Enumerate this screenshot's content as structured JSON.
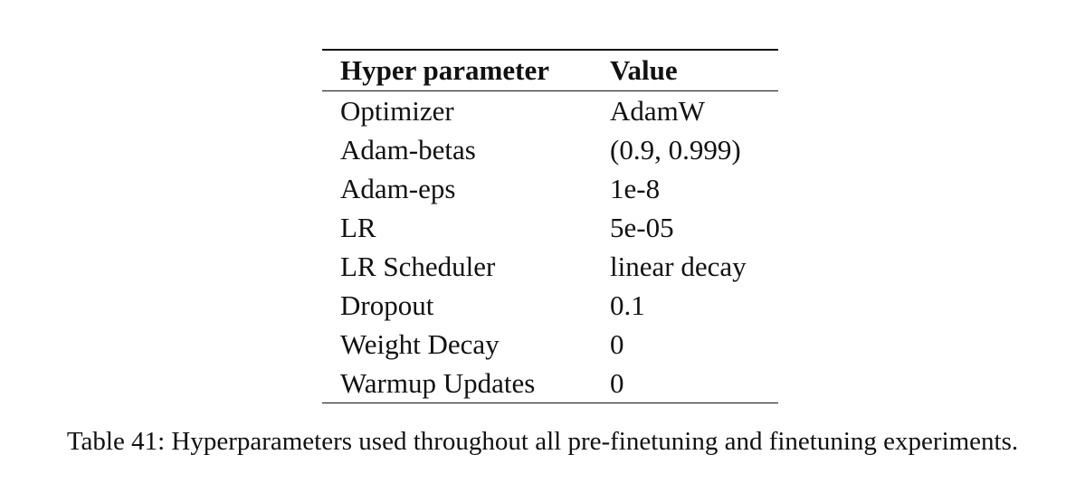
{
  "table": {
    "headers": {
      "name": "Hyper parameter",
      "value": "Value"
    },
    "rows": [
      {
        "name": "Optimizer",
        "value": "AdamW"
      },
      {
        "name": "Adam-betas",
        "value": "(0.9, 0.999)"
      },
      {
        "name": "Adam-eps",
        "value": "1e-8"
      },
      {
        "name": "LR",
        "value": "5e-05"
      },
      {
        "name": "LR Scheduler",
        "value": "linear decay"
      },
      {
        "name": "Dropout",
        "value": "0.1"
      },
      {
        "name": "Weight Decay",
        "value": "0"
      },
      {
        "name": "Warmup Updates",
        "value": "0"
      }
    ]
  },
  "caption": "Table 41: Hyperparameters used throughout all pre-finetuning and finetuning experiments."
}
